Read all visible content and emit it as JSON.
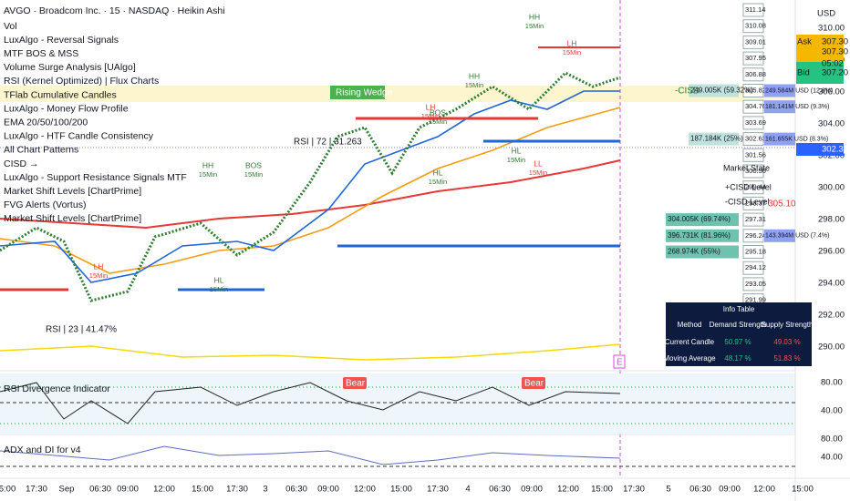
{
  "header": {
    "title": "AVGO · Broadcom Inc. · 15 · NASDAQ · Heikin Ashi"
  },
  "indicators": [
    "Vol",
    "LuxAlgo - Reversal Signals",
    "MTF BOS & MSS",
    "Volume Surge Analysis [UAlgo]",
    "RSI (Kernel Optimized) | Flux Charts",
    "TFlab Cumulative Candles",
    "LuxAlgo - Money Flow Profile",
    "EMA 20/50/100/200",
    "LuxAlgo - HTF Candle Consistency",
    "All Chart Patterns",
    "CISD →",
    "LuxAlgo - Support Resistance Signals MTF",
    "Market Shift Levels [ChartPrime]",
    "FVG Alerts (Vortus)",
    "Market Shift Levels [ChartPrime]"
  ],
  "price_axis": {
    "currency": "USD",
    "labels": [
      "310.00",
      "308.00",
      "306.00",
      "304.00",
      "302.00",
      "300.00",
      "298.00",
      "296.00",
      "294.00",
      "292.00",
      "290.00"
    ],
    "current": "302.39",
    "ask_label": "Ask",
    "ask": "307.30",
    "ask2": "307.30",
    "countdown": "05:02",
    "bid_label": "Bid",
    "bid": "307.20"
  },
  "profile_levels": [
    "311.14",
    "310.08",
    "309.01",
    "307.95",
    "306.88",
    "305.82",
    "304.76",
    "303.69",
    "302.63",
    "301.56",
    "300.50",
    "299.44",
    "298.37",
    "297.31",
    "296.24",
    "295.18",
    "294.12",
    "293.05",
    "291.99",
    "290.92",
    "289.86"
  ],
  "profile_volumes": [
    {
      "label": "249.005K (59.32%)",
      "row": 5
    },
    {
      "label": "187.184K (25%)",
      "row": 8
    },
    {
      "label": "304.005K (69.74%)",
      "row": 13
    },
    {
      "label": "396.731K (81.96%)",
      "row": 14
    },
    {
      "label": "268.974K (55%)",
      "row": 15
    }
  ],
  "money_flow": [
    {
      "label": "249.584M USD (12.8%)",
      "row": 5
    },
    {
      "label": "181.141M USD (9.3%)",
      "row": 6
    },
    {
      "label": "161.655K USD (8.3%)",
      "row": 8
    },
    {
      "label": "143.394M USD (7.4%)",
      "row": 14
    }
  ],
  "time_axis": [
    "5:00",
    "17:30",
    "Sep",
    "06:30",
    "09:00",
    "12:00",
    "15:00",
    "17:30",
    "3",
    "06:30",
    "09:00",
    "12:00",
    "15:00",
    "17:30",
    "4",
    "06:30",
    "09:00",
    "12:00",
    "15:00",
    "17:30",
    "5",
    "06:30",
    "09:00",
    "12:00",
    "15:00"
  ],
  "annotations": {
    "pattern": "Rising Wedge",
    "rsi_high": "RSI | 72 | 31.263",
    "rsi_low": "RSI | 23 | 41.47%",
    "minus_cisd": "-CISD",
    "plus_cisd_level": "+CISD Level",
    "minus_cisd_level": "-CISD Level",
    "market_state": "Market State",
    "cisd_price": "305.10",
    "bear1": "Bear",
    "bear2": "Bear",
    "marker": "E"
  },
  "structure_labels": [
    {
      "text": "HH",
      "sub": "15Min"
    },
    {
      "text": "BOS",
      "sub": "15Min"
    },
    {
      "text": "LH",
      "sub": "15Min"
    },
    {
      "text": "HL",
      "sub": "15Min"
    },
    {
      "text": "BOS",
      "sub": "15Min"
    },
    {
      "text": "HL",
      "sub": "15Min"
    },
    {
      "text": "LH",
      "sub": "15Min"
    },
    {
      "text": "HH",
      "sub": "15Min"
    },
    {
      "text": "HL",
      "sub": "15Min"
    },
    {
      "text": "LL",
      "sub": "15Min"
    },
    {
      "text": "HH",
      "sub": "15Min"
    },
    {
      "text": "LH",
      "sub": "15Min"
    }
  ],
  "info_table": {
    "title": "Info Table",
    "columns": [
      "Method",
      "Demand Strength",
      "Supply Strength"
    ],
    "rows": [
      [
        "Current Candle",
        "50.97 %",
        "49.03 %"
      ],
      [
        "Moving Average",
        "48.17 %",
        "51.83 %"
      ]
    ]
  },
  "rsi_pane": {
    "title": "RSI Divergence Indicator",
    "labels": [
      "80.00",
      "40.00"
    ]
  },
  "adx_pane": {
    "title": "ADX and DI for v4",
    "labels": [
      "80.00",
      "40.00"
    ]
  }
}
